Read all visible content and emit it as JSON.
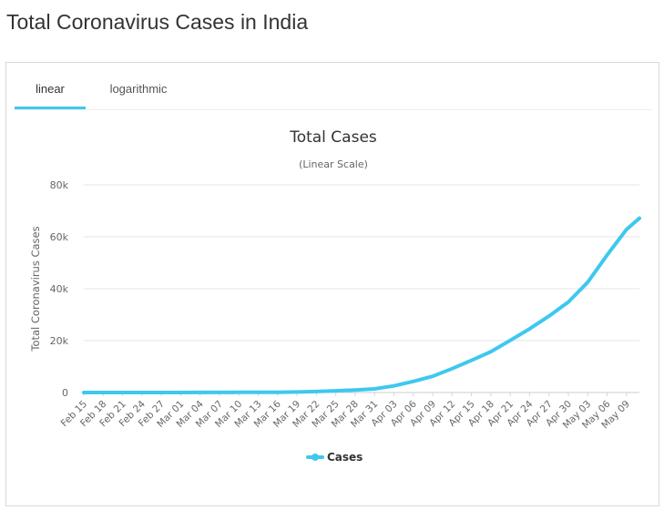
{
  "page": {
    "title": "Total Coronavirus Cases in India"
  },
  "tabs": [
    {
      "label": "linear",
      "active": true
    },
    {
      "label": "logarithmic",
      "active": false
    }
  ],
  "colors": {
    "series": "#3ec8ef",
    "tab_active": "#3ec8ef",
    "grid": "#e6e6e6"
  },
  "chart_data": {
    "type": "line",
    "title": "Total Cases",
    "subtitle": "(Linear Scale)",
    "ylabel": "Total Coronavirus Cases",
    "xlabel": "",
    "ylim": [
      0,
      80000
    ],
    "y_ticks": [
      0,
      20000,
      40000,
      60000,
      80000
    ],
    "y_tick_labels": [
      "0",
      "20k",
      "40k",
      "60k",
      "80k"
    ],
    "x_tick_labels": [
      "Feb 15",
      "Feb 18",
      "Feb 21",
      "Feb 24",
      "Feb 27",
      "Mar 01",
      "Mar 04",
      "Mar 07",
      "Mar 10",
      "Mar 13",
      "Mar 16",
      "Mar 19",
      "Mar 22",
      "Mar 25",
      "Mar 28",
      "Mar 31",
      "Apr 03",
      "Apr 06",
      "Apr 09",
      "Apr 12",
      "Apr 15",
      "Apr 18",
      "Apr 21",
      "Apr 24",
      "Apr 27",
      "Apr 30",
      "May 03",
      "May 06",
      "May 09"
    ],
    "grid": true,
    "legend_position": "bottom-center",
    "series": [
      {
        "name": "Cases",
        "x": [
          "Feb 15",
          "Feb 18",
          "Feb 21",
          "Feb 24",
          "Feb 27",
          "Mar 01",
          "Mar 04",
          "Mar 07",
          "Mar 10",
          "Mar 13",
          "Mar 16",
          "Mar 19",
          "Mar 22",
          "Mar 25",
          "Mar 28",
          "Mar 31",
          "Apr 03",
          "Apr 06",
          "Apr 09",
          "Apr 12",
          "Apr 15",
          "Apr 18",
          "Apr 21",
          "Apr 24",
          "Apr 27",
          "Apr 30",
          "May 03",
          "May 06",
          "May 09",
          "May 11"
        ],
        "values": [
          3,
          3,
          3,
          3,
          3,
          3,
          29,
          34,
          62,
          82,
          114,
          194,
          396,
          657,
          987,
          1397,
          2567,
          4281,
          6237,
          9205,
          12380,
          15712,
          20080,
          24530,
          29435,
          34863,
          42533,
          52952,
          62808,
          67152
        ]
      }
    ]
  }
}
